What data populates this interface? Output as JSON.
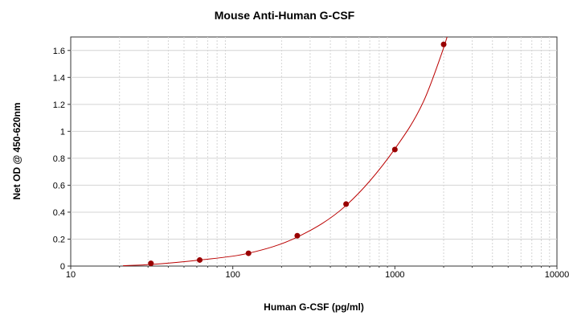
{
  "chart_data": {
    "type": "scatter",
    "title": "Mouse Anti-Human G-CSF",
    "xlabel": "Human G-CSF (pg/ml)",
    "ylabel": "Net OD @ 450-620nm",
    "x_scale": "log",
    "xlim": [
      10,
      10000
    ],
    "ylim": [
      0,
      1.7
    ],
    "x_ticks": [
      "10",
      "100",
      "1000",
      "10000"
    ],
    "y_ticks": [
      "0",
      "0.2",
      "0.4",
      "0.6",
      "0.8",
      "1",
      "1.2",
      "1.4",
      "1.6"
    ],
    "grid": true,
    "legend": "none",
    "series": [
      {
        "x": [
          31.25,
          62.5,
          125,
          250,
          500,
          1000,
          2000
        ],
        "y": [
          0.02,
          0.045,
          0.095,
          0.225,
          0.46,
          0.865,
          1.645
        ]
      }
    ],
    "fit_curve": {
      "x": [
        21,
        31.25,
        62.5,
        125,
        250,
        500,
        1000,
        1500,
        2000,
        2100
      ],
      "y": [
        0.002,
        0.012,
        0.045,
        0.095,
        0.215,
        0.45,
        0.87,
        1.22,
        1.62,
        1.7
      ]
    },
    "colors": {
      "marker": "#990000",
      "curve": "#bb0000",
      "grid": "#d4d4d4"
    }
  }
}
